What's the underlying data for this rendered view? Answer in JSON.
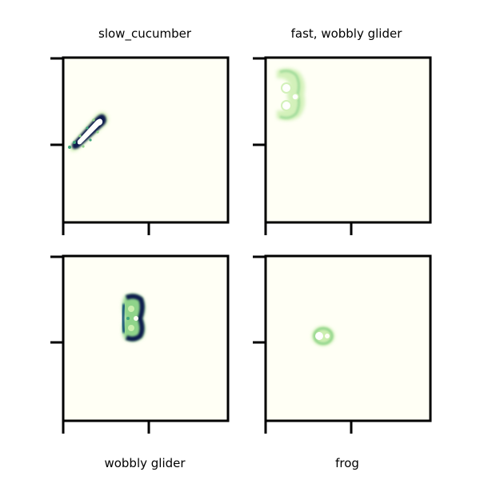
{
  "chart_data": {
    "type": "heatmap",
    "colormap": [
      "#fffff5",
      "#ccefb0",
      "#8fd48a",
      "#3fa67a",
      "#0e4e73",
      "#0a1b4d"
    ],
    "panels": [
      {
        "title": "slow_cucumber",
        "shape": "diagonal-cucumber",
        "x_ticks": [
          "",
          "",
          ""
        ],
        "y_ticks": [
          "",
          "",
          ""
        ],
        "show_x_ticks": true,
        "show_y_ticks": true
      },
      {
        "title": "fast, wobbly glider",
        "shape": "faint-glider-left",
        "show_x_ticks": true,
        "show_y_ticks": true
      },
      {
        "title": "wobbly glider",
        "shape": "dark-glider-center",
        "show_x_ticks": true,
        "show_y_ticks": true
      },
      {
        "title": "frog",
        "shape": "small-ring",
        "show_x_ticks": true,
        "show_y_ticks": true
      }
    ]
  }
}
